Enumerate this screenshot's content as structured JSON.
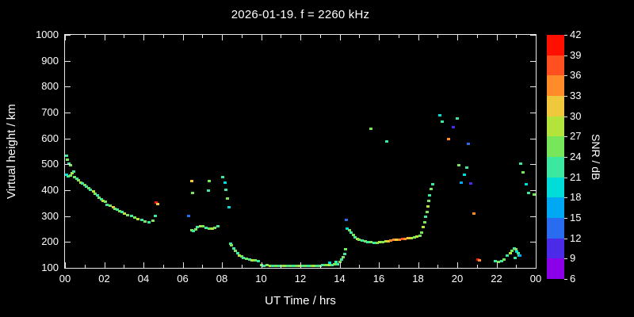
{
  "title": "2026-01-19. f = 2260 kHz",
  "colors": {
    "background": "#000000",
    "foreground": "#ffffff"
  },
  "chart_data": {
    "type": "scatter",
    "title": "2026-01-19. f = 2260 kHz",
    "xlabel": "UT Time / hrs",
    "ylabel": "Virtual height / km",
    "xlim": [
      0,
      24
    ],
    "ylim": [
      100,
      1000
    ],
    "grid": false,
    "x_tick_values": [
      0,
      2,
      4,
      6,
      8,
      10,
      12,
      14,
      16,
      18,
      20,
      22,
      24
    ],
    "x_tick_labels": [
      "00",
      "02",
      "04",
      "06",
      "08",
      "10",
      "12",
      "14",
      "16",
      "18",
      "20",
      "22",
      "00"
    ],
    "y_tick_values": [
      100,
      200,
      300,
      400,
      500,
      600,
      700,
      800,
      900,
      1000
    ],
    "colorbar": {
      "label": "SNR / dB",
      "min": 6,
      "max": 42,
      "ticks": [
        6,
        9,
        12,
        15,
        18,
        21,
        24,
        27,
        30,
        33,
        36,
        39,
        42
      ],
      "bands": [
        {
          "min": 6,
          "color": "#8a00e8"
        },
        {
          "min": 9,
          "color": "#4b2be8"
        },
        {
          "min": 12,
          "color": "#2a6cf0"
        },
        {
          "min": 15,
          "color": "#00a8f4"
        },
        {
          "min": 18,
          "color": "#00dcd8"
        },
        {
          "min": 21,
          "color": "#3ce8a0"
        },
        {
          "min": 24,
          "color": "#78e65a"
        },
        {
          "min": 27,
          "color": "#b4e43c"
        },
        {
          "min": 30,
          "color": "#f0c83c"
        },
        {
          "min": 33,
          "color": "#ff8c28"
        },
        {
          "min": 36,
          "color": "#ff5020"
        },
        {
          "min": 39,
          "color": "#ff0f00"
        }
      ]
    },
    "points": [
      [
        0.08,
        535,
        21
      ],
      [
        0.12,
        520,
        24
      ],
      [
        0.2,
        505,
        21
      ],
      [
        0.28,
        498,
        24
      ],
      [
        0.1,
        462,
        18
      ],
      [
        0.18,
        455,
        21
      ],
      [
        0.3,
        458,
        24
      ],
      [
        0.38,
        468,
        27
      ],
      [
        0.45,
        472,
        21
      ],
      [
        0.5,
        452,
        24
      ],
      [
        0.6,
        446,
        21
      ],
      [
        0.7,
        440,
        24
      ],
      [
        0.8,
        432,
        27
      ],
      [
        0.9,
        427,
        21
      ],
      [
        1.0,
        420,
        24
      ],
      [
        1.1,
        416,
        21
      ],
      [
        1.2,
        410,
        24
      ],
      [
        1.3,
        402,
        21
      ],
      [
        1.45,
        396,
        27
      ],
      [
        1.55,
        388,
        24
      ],
      [
        1.65,
        382,
        21
      ],
      [
        1.75,
        372,
        24
      ],
      [
        1.85,
        366,
        21
      ],
      [
        1.95,
        360,
        27
      ],
      [
        2.05,
        356,
        24
      ],
      [
        2.15,
        346,
        21
      ],
      [
        2.3,
        341,
        24
      ],
      [
        2.45,
        336,
        30
      ],
      [
        2.55,
        331,
        24
      ],
      [
        2.65,
        326,
        21
      ],
      [
        2.8,
        321,
        24
      ],
      [
        2.9,
        316,
        21
      ],
      [
        3.05,
        311,
        27
      ],
      [
        3.2,
        306,
        24
      ],
      [
        3.4,
        301,
        21
      ],
      [
        3.55,
        296,
        24
      ],
      [
        3.7,
        291,
        27
      ],
      [
        3.9,
        286,
        21
      ],
      [
        4.1,
        282,
        24
      ],
      [
        4.3,
        278,
        21
      ],
      [
        4.5,
        283,
        24
      ],
      [
        4.6,
        302,
        21
      ],
      [
        4.65,
        355,
        39
      ],
      [
        4.72,
        348,
        30
      ],
      [
        6.3,
        302,
        12
      ],
      [
        6.45,
        438,
        30
      ],
      [
        6.5,
        392,
        24
      ],
      [
        6.45,
        248,
        24
      ],
      [
        6.55,
        243,
        21
      ],
      [
        6.65,
        251,
        24
      ],
      [
        6.75,
        258,
        21
      ],
      [
        6.9,
        263,
        27
      ],
      [
        7.05,
        261,
        24
      ],
      [
        7.2,
        257,
        21
      ],
      [
        7.35,
        254,
        24
      ],
      [
        7.5,
        252,
        27
      ],
      [
        7.65,
        257,
        24
      ],
      [
        7.8,
        263,
        21
      ],
      [
        7.3,
        400,
        21
      ],
      [
        7.35,
        438,
        24
      ],
      [
        8.05,
        452,
        21
      ],
      [
        8.15,
        430,
        18
      ],
      [
        8.2,
        402,
        21
      ],
      [
        8.3,
        368,
        24
      ],
      [
        8.35,
        336,
        18
      ],
      [
        8.45,
        196,
        21
      ],
      [
        8.5,
        188,
        24
      ],
      [
        8.6,
        176,
        21
      ],
      [
        8.7,
        166,
        24
      ],
      [
        8.8,
        157,
        21
      ],
      [
        8.9,
        150,
        27
      ],
      [
        9.0,
        146,
        24
      ],
      [
        9.1,
        141,
        21
      ],
      [
        9.25,
        138,
        24
      ],
      [
        9.4,
        135,
        21
      ],
      [
        9.55,
        132,
        27
      ],
      [
        9.7,
        130,
        24
      ],
      [
        9.85,
        128,
        21
      ],
      [
        10.0,
        112,
        24
      ],
      [
        10.15,
        110,
        21
      ],
      [
        10.3,
        111,
        24
      ],
      [
        10.45,
        109,
        27
      ],
      [
        10.6,
        110,
        21
      ],
      [
        10.75,
        108,
        24
      ],
      [
        10.9,
        110,
        21
      ],
      [
        11.05,
        109,
        24
      ],
      [
        11.2,
        108,
        27
      ],
      [
        11.35,
        110,
        21
      ],
      [
        11.5,
        108,
        24
      ],
      [
        11.65,
        109,
        21
      ],
      [
        11.8,
        108,
        24
      ],
      [
        11.95,
        110,
        27
      ],
      [
        12.1,
        108,
        21
      ],
      [
        12.25,
        109,
        24
      ],
      [
        12.4,
        110,
        21
      ],
      [
        12.55,
        108,
        24
      ],
      [
        12.7,
        110,
        27
      ],
      [
        12.85,
        109,
        21
      ],
      [
        13.0,
        110,
        24
      ],
      [
        13.15,
        111,
        21
      ],
      [
        13.3,
        112,
        24
      ],
      [
        13.45,
        113,
        27
      ],
      [
        13.6,
        112,
        21
      ],
      [
        13.75,
        114,
        24
      ],
      [
        13.9,
        116,
        21
      ],
      [
        13.5,
        122,
        18
      ],
      [
        13.8,
        124,
        21
      ],
      [
        14.0,
        126,
        24
      ],
      [
        14.1,
        133,
        21
      ],
      [
        14.2,
        142,
        24
      ],
      [
        14.25,
        156,
        21
      ],
      [
        14.3,
        172,
        24
      ],
      [
        14.35,
        287,
        12
      ],
      [
        14.4,
        252,
        18
      ],
      [
        14.5,
        247,
        24
      ],
      [
        14.6,
        238,
        21
      ],
      [
        14.7,
        228,
        24
      ],
      [
        14.8,
        220,
        21
      ],
      [
        14.9,
        214,
        27
      ],
      [
        15.0,
        209,
        24
      ],
      [
        15.15,
        206,
        21
      ],
      [
        15.3,
        203,
        24
      ],
      [
        15.45,
        201,
        21
      ],
      [
        15.6,
        200,
        24
      ],
      [
        15.75,
        198,
        21
      ],
      [
        15.9,
        199,
        24
      ],
      [
        16.05,
        200,
        27
      ],
      [
        16.2,
        202,
        24
      ],
      [
        16.35,
        204,
        27
      ],
      [
        16.5,
        205,
        30
      ],
      [
        16.6,
        207,
        33
      ],
      [
        16.75,
        209,
        33
      ],
      [
        16.9,
        211,
        30
      ],
      [
        17.05,
        210,
        33
      ],
      [
        17.2,
        212,
        36
      ],
      [
        17.35,
        213,
        33
      ],
      [
        17.5,
        215,
        30
      ],
      [
        17.65,
        217,
        27
      ],
      [
        17.8,
        219,
        24
      ],
      [
        17.95,
        221,
        27
      ],
      [
        18.1,
        226,
        24
      ],
      [
        15.6,
        640,
        24
      ],
      [
        16.4,
        590,
        21
      ],
      [
        18.2,
        238,
        24
      ],
      [
        18.28,
        258,
        27
      ],
      [
        18.35,
        278,
        24
      ],
      [
        18.4,
        298,
        21
      ],
      [
        18.45,
        318,
        24
      ],
      [
        18.5,
        338,
        27
      ],
      [
        18.55,
        360,
        24
      ],
      [
        18.6,
        382,
        21
      ],
      [
        18.68,
        405,
        24
      ],
      [
        18.75,
        425,
        21
      ],
      [
        19.1,
        690,
        18
      ],
      [
        19.25,
        665,
        21
      ],
      [
        19.55,
        600,
        33
      ],
      [
        19.8,
        645,
        9
      ],
      [
        20.0,
        680,
        21
      ],
      [
        20.1,
        498,
        24
      ],
      [
        20.2,
        432,
        15
      ],
      [
        20.35,
        462,
        18
      ],
      [
        20.5,
        490,
        21
      ],
      [
        20.55,
        582,
        12
      ],
      [
        20.7,
        428,
        9
      ],
      [
        20.85,
        312,
        33
      ],
      [
        21.05,
        134,
        42
      ],
      [
        21.15,
        130,
        33
      ],
      [
        21.95,
        128,
        21
      ],
      [
        22.1,
        124,
        24
      ],
      [
        22.25,
        127,
        21
      ],
      [
        22.4,
        133,
        24
      ],
      [
        22.55,
        148,
        21
      ],
      [
        22.7,
        158,
        27
      ],
      [
        22.8,
        168,
        24
      ],
      [
        22.9,
        178,
        21
      ],
      [
        23.0,
        174,
        24
      ],
      [
        23.05,
        164,
        18
      ],
      [
        23.1,
        158,
        21
      ],
      [
        23.15,
        150,
        24
      ],
      [
        22.95,
        140,
        21
      ],
      [
        23.2,
        148,
        15
      ],
      [
        23.25,
        505,
        21
      ],
      [
        23.35,
        470,
        24
      ],
      [
        23.5,
        425,
        18
      ],
      [
        23.65,
        392,
        21
      ],
      [
        23.9,
        386,
        24
      ]
    ]
  }
}
